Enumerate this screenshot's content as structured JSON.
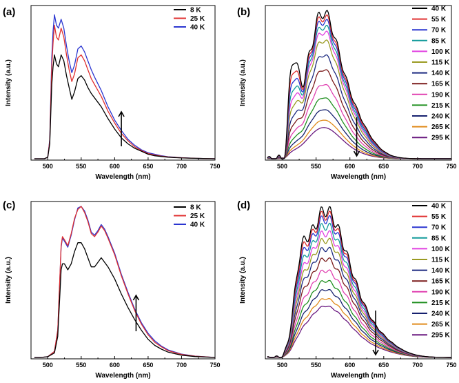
{
  "chart_data": [
    {
      "panel_label": "(a)",
      "type": "line",
      "xlabel": "Wavelength (nm)",
      "ylabel": "Intensity (a.u.)",
      "xlim": [
        475,
        750
      ],
      "xticks": [
        500,
        550,
        600,
        650,
        700,
        750
      ],
      "xtick_labels": [
        "500",
        "550",
        "600",
        "650",
        "700",
        "750"
      ],
      "arrow": {
        "direction": "up",
        "x": 610
      },
      "series": [
        {
          "name": "8   K",
          "color": "#000000",
          "x": [
            480,
            495,
            500,
            503,
            506,
            508,
            510,
            513,
            516,
            520,
            524,
            528,
            532,
            536,
            540,
            545,
            550,
            555,
            560,
            565,
            570,
            580,
            590,
            600,
            610,
            620,
            630,
            640,
            650,
            660,
            670,
            680,
            700,
            720,
            750
          ],
          "y": [
            0.0,
            0.0,
            0.01,
            0.1,
            0.5,
            0.62,
            0.7,
            0.64,
            0.62,
            0.7,
            0.66,
            0.56,
            0.48,
            0.4,
            0.45,
            0.54,
            0.56,
            0.53,
            0.48,
            0.44,
            0.41,
            0.35,
            0.27,
            0.2,
            0.14,
            0.1,
            0.07,
            0.05,
            0.03,
            0.02,
            0.015,
            0.01,
            0.005,
            0.003,
            0.0
          ]
        },
        {
          "name": "25 K",
          "color": "#e03030",
          "x": [
            480,
            495,
            500,
            503,
            506,
            508,
            510,
            513,
            516,
            520,
            524,
            528,
            532,
            536,
            540,
            545,
            550,
            555,
            560,
            565,
            570,
            580,
            590,
            600,
            610,
            620,
            630,
            640,
            650,
            660,
            670,
            680,
            700,
            720,
            750
          ],
          "y": [
            0.0,
            0.0,
            0.01,
            0.12,
            0.62,
            0.78,
            0.9,
            0.82,
            0.8,
            0.88,
            0.82,
            0.7,
            0.6,
            0.52,
            0.57,
            0.68,
            0.7,
            0.66,
            0.6,
            0.54,
            0.5,
            0.42,
            0.32,
            0.24,
            0.17,
            0.12,
            0.08,
            0.055,
            0.035,
            0.025,
            0.017,
            0.012,
            0.006,
            0.003,
            0.0
          ]
        },
        {
          "name": "40 K",
          "color": "#2a35d0",
          "x": [
            480,
            495,
            500,
            503,
            506,
            508,
            510,
            513,
            516,
            520,
            524,
            528,
            532,
            536,
            540,
            545,
            550,
            555,
            560,
            565,
            570,
            580,
            590,
            600,
            610,
            620,
            630,
            640,
            650,
            660,
            670,
            680,
            700,
            720,
            750
          ],
          "y": [
            0.0,
            0.0,
            0.01,
            0.13,
            0.68,
            0.86,
            0.97,
            0.9,
            0.88,
            0.94,
            0.88,
            0.76,
            0.66,
            0.58,
            0.63,
            0.74,
            0.76,
            0.72,
            0.66,
            0.6,
            0.55,
            0.46,
            0.35,
            0.26,
            0.19,
            0.13,
            0.09,
            0.06,
            0.04,
            0.03,
            0.02,
            0.013,
            0.007,
            0.003,
            0.0
          ]
        }
      ]
    },
    {
      "panel_label": "(b)",
      "type": "line",
      "xlabel": "Wavelength (nm)",
      "ylabel": "Intensity (a.u.)",
      "xlim": [
        475,
        750
      ],
      "xticks": [
        500,
        550,
        600,
        650,
        700,
        750
      ],
      "xtick_labels": [
        "500",
        "550",
        "600",
        "650",
        "700",
        "750"
      ],
      "arrow": {
        "direction": "down",
        "x": 610
      },
      "series": [
        {
          "name": "40   K",
          "color": "#000000",
          "peak": 1.0
        },
        {
          "name": "55   K",
          "color": "#e03030",
          "peak": 0.97
        },
        {
          "name": "70   K",
          "color": "#2a35d0",
          "peak": 0.94
        },
        {
          "name": "85   K",
          "color": "#119a9a",
          "peak": 0.9
        },
        {
          "name": "100  K",
          "color": "#e040e0",
          "peak": 0.86
        },
        {
          "name": "115  K",
          "color": "#9a9a22",
          "peak": 0.8
        },
        {
          "name": "140  K",
          "color": "#1c2a80",
          "peak": 0.7
        },
        {
          "name": "165  K",
          "color": "#7a1a1a",
          "peak": 0.6
        },
        {
          "name": "190  K",
          "color": "#e040b0",
          "peak": 0.5
        },
        {
          "name": "215  K",
          "color": "#1f8f1f",
          "peak": 0.41
        },
        {
          "name": "240  K",
          "color": "#15206e",
          "peak": 0.33
        },
        {
          "name": "265  K",
          "color": "#e08a1a",
          "peak": 0.26
        },
        {
          "name": "295  K",
          "color": "#6a1a80",
          "peak": 0.21
        }
      ]
    },
    {
      "panel_label": "(c)",
      "type": "line",
      "xlabel": "Wavelength (nm)",
      "ylabel": "Intensity (a.u.)",
      "xlim": [
        475,
        750
      ],
      "xticks": [
        500,
        550,
        600,
        650,
        700,
        750
      ],
      "xtick_labels": [
        "500",
        "550",
        "600",
        "650",
        "700",
        "750"
      ],
      "arrow": {
        "direction": "up",
        "x": 632
      },
      "series": [
        {
          "name": "8   K",
          "color": "#000000",
          "x": [
            480,
            490,
            500,
            510,
            515,
            520,
            522,
            525,
            530,
            535,
            540,
            545,
            550,
            555,
            560,
            565,
            570,
            575,
            580,
            585,
            590,
            600,
            610,
            620,
            630,
            640,
            650,
            660,
            670,
            680,
            700,
            720,
            750
          ],
          "y": [
            0.0,
            0.0,
            0.005,
            0.03,
            0.14,
            0.58,
            0.62,
            0.62,
            0.58,
            0.62,
            0.7,
            0.76,
            0.76,
            0.72,
            0.66,
            0.6,
            0.6,
            0.63,
            0.66,
            0.63,
            0.6,
            0.52,
            0.42,
            0.33,
            0.25,
            0.18,
            0.12,
            0.08,
            0.055,
            0.035,
            0.015,
            0.006,
            0.0
          ]
        },
        {
          "name": "25 K",
          "color": "#e03030",
          "x": [
            480,
            490,
            500,
            510,
            515,
            520,
            522,
            525,
            530,
            535,
            540,
            545,
            550,
            555,
            560,
            565,
            570,
            575,
            580,
            585,
            590,
            600,
            610,
            620,
            630,
            640,
            650,
            660,
            670,
            680,
            700,
            720,
            750
          ],
          "y": [
            0.0,
            0.0,
            0.005,
            0.04,
            0.18,
            0.74,
            0.8,
            0.78,
            0.74,
            0.82,
            0.92,
            0.98,
            1.0,
            0.96,
            0.9,
            0.82,
            0.8,
            0.83,
            0.87,
            0.84,
            0.79,
            0.68,
            0.54,
            0.42,
            0.31,
            0.22,
            0.15,
            0.1,
            0.07,
            0.045,
            0.02,
            0.008,
            0.0
          ]
        },
        {
          "name": "40 K",
          "color": "#2a35d0",
          "x": [
            480,
            490,
            500,
            510,
            515,
            520,
            522,
            525,
            530,
            535,
            540,
            545,
            550,
            555,
            560,
            565,
            570,
            575,
            580,
            585,
            590,
            600,
            610,
            620,
            630,
            640,
            650,
            660,
            670,
            680,
            700,
            720,
            750
          ],
          "y": [
            0.0,
            0.0,
            0.005,
            0.04,
            0.18,
            0.73,
            0.79,
            0.77,
            0.73,
            0.81,
            0.91,
            0.99,
            1.0,
            0.97,
            0.91,
            0.83,
            0.81,
            0.84,
            0.88,
            0.85,
            0.8,
            0.69,
            0.55,
            0.43,
            0.32,
            0.23,
            0.16,
            0.11,
            0.075,
            0.05,
            0.022,
            0.009,
            0.0
          ]
        }
      ]
    },
    {
      "panel_label": "(d)",
      "type": "line",
      "xlabel": "Wavelength (nm)",
      "ylabel": "Intensity (a.u.)",
      "xlim": [
        475,
        750
      ],
      "xticks": [
        500,
        550,
        600,
        650,
        700,
        750
      ],
      "xtick_labels": [
        "500",
        "550",
        "600",
        "650",
        "700",
        "750"
      ],
      "arrow": {
        "direction": "down",
        "x": 638
      },
      "series": [
        {
          "name": "40   K",
          "color": "#000000",
          "peak": 1.0
        },
        {
          "name": "55   K",
          "color": "#e03030",
          "peak": 0.97
        },
        {
          "name": "70   K",
          "color": "#2a35d0",
          "peak": 0.94
        },
        {
          "name": "85   K",
          "color": "#119a9a",
          "peak": 0.89
        },
        {
          "name": "100  K",
          "color": "#e040e0",
          "peak": 0.84
        },
        {
          "name": "115  K",
          "color": "#9a9a22",
          "peak": 0.79
        },
        {
          "name": "140  K",
          "color": "#1c2a80",
          "peak": 0.73
        },
        {
          "name": "165  K",
          "color": "#7a1a1a",
          "peak": 0.66
        },
        {
          "name": "190  K",
          "color": "#e040b0",
          "peak": 0.58
        },
        {
          "name": "215  K",
          "color": "#1f8f1f",
          "peak": 0.51
        },
        {
          "name": "240  K",
          "color": "#15206e",
          "peak": 0.45
        },
        {
          "name": "265  K",
          "color": "#e08a1a",
          "peak": 0.39
        },
        {
          "name": "295  K",
          "color": "#6a1a80",
          "peak": 0.34
        }
      ]
    }
  ]
}
